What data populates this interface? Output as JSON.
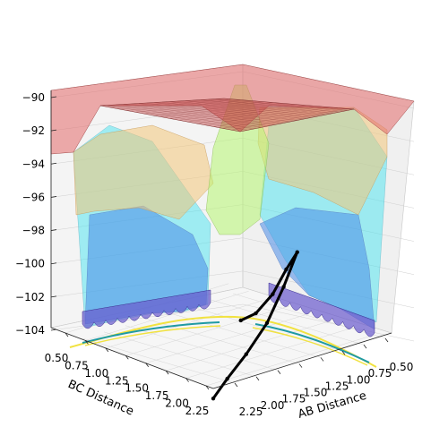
{
  "chart_data": {
    "type": "surface3d",
    "title": "",
    "xlabel": "AB Distance",
    "ylabel": "BC Distance",
    "zlabel": "",
    "x_ticks": [
      "0.50",
      "0.75",
      "1.00",
      "1.25",
      "1.50",
      "1.75",
      "2.00",
      "2.25"
    ],
    "y_ticks": [
      "0.50",
      "0.75",
      "1.00",
      "1.25",
      "1.50",
      "1.75",
      "2.00",
      "2.25"
    ],
    "z_ticks": [
      "−104",
      "−102",
      "−100",
      "−98",
      "−96",
      "−94",
      "−92",
      "−90"
    ],
    "x_range": [
      0.5,
      2.3
    ],
    "y_range": [
      0.5,
      2.3
    ],
    "z_range": [
      -104,
      -90
    ],
    "colormap": "jet",
    "grid": true,
    "trajectory": {
      "color": "#000000",
      "points": [
        {
          "ab": 2.3,
          "bc": 0.5,
          "e": -104.6
        },
        {
          "ab": 2.05,
          "bc": 0.62,
          "e": -103.9
        },
        {
          "ab": 1.75,
          "bc": 0.74,
          "e": -103.0
        },
        {
          "ab": 1.45,
          "bc": 0.84,
          "e": -101.7
        },
        {
          "ab": 1.2,
          "bc": 0.93,
          "e": -100.0
        },
        {
          "ab": 1.0,
          "bc": 1.0,
          "e": -98.3
        },
        {
          "ab": 0.93,
          "bc": 1.2,
          "e": -99.5
        },
        {
          "ab": 0.84,
          "bc": 1.45,
          "e": -101.2
        },
        {
          "ab": 0.74,
          "bc": 1.75,
          "e": -102.6
        },
        {
          "ab": 0.62,
          "bc": 2.05,
          "e": -103.3
        }
      ]
    }
  }
}
